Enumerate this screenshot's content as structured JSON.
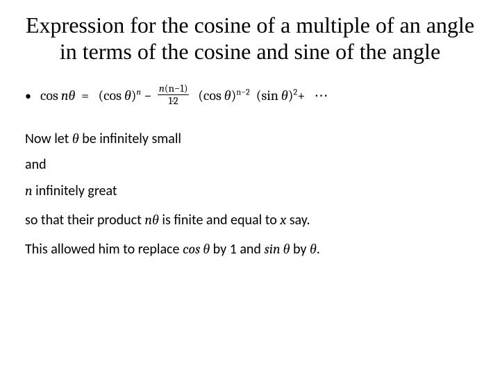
{
  "colors": {
    "background": "#ffffff",
    "text": "#000000"
  },
  "fonts": {
    "title_family": "Times New Roman",
    "body_family": "Calibri",
    "math_family": "Cambria Math",
    "title_size_pt": 24,
    "body_size_pt": 15
  },
  "title": "Expression for the cosine of a multiple of an angle in terms of the cosine and sine of the angle",
  "formula": {
    "lhs_func": "cos",
    "lhs_arg_n": "n",
    "lhs_arg_theta": "θ",
    "eq": "=",
    "term1_base_l": "(cos ",
    "term1_base_theta": "θ",
    "term1_base_r": ")",
    "term1_exp": "n",
    "minus": "−",
    "frac_num_l": "n",
    "frac_num_paren": "(n−1)",
    "frac_den": "1·2",
    "term2_base_l": "(cos ",
    "term2_base_theta": "θ",
    "term2_base_r": ")",
    "term2_exp": "n−2",
    "term3_base_l": "(sin ",
    "term3_base_theta": "θ",
    "term3_base_r": ")",
    "term3_exp": "2",
    "plus": "+",
    "dots": "⋯"
  },
  "lines": {
    "l1a": "Now let ",
    "l1_theta": "θ",
    "l1b": " be infinitely small",
    "l2": "and",
    "l3a": "",
    "l3_n": "n",
    "l3b": " infinitely great",
    "l4a": "so that their product ",
    "l4_ntheta_n": "n",
    "l4_ntheta_th": "θ",
    "l4b": " is finite and equal to ",
    "l4_x": "x",
    "l4c": " say.",
    "l5a": "This allowed him to replace ",
    "l5_cos": "cos ",
    "l5_th1": "θ",
    "l5b": " by 1 and ",
    "l5_sin": "sin ",
    "l5_th2": "θ",
    "l5c": " by ",
    "l5_th3": "θ",
    "l5d": "."
  },
  "bullet_glyph": "•"
}
